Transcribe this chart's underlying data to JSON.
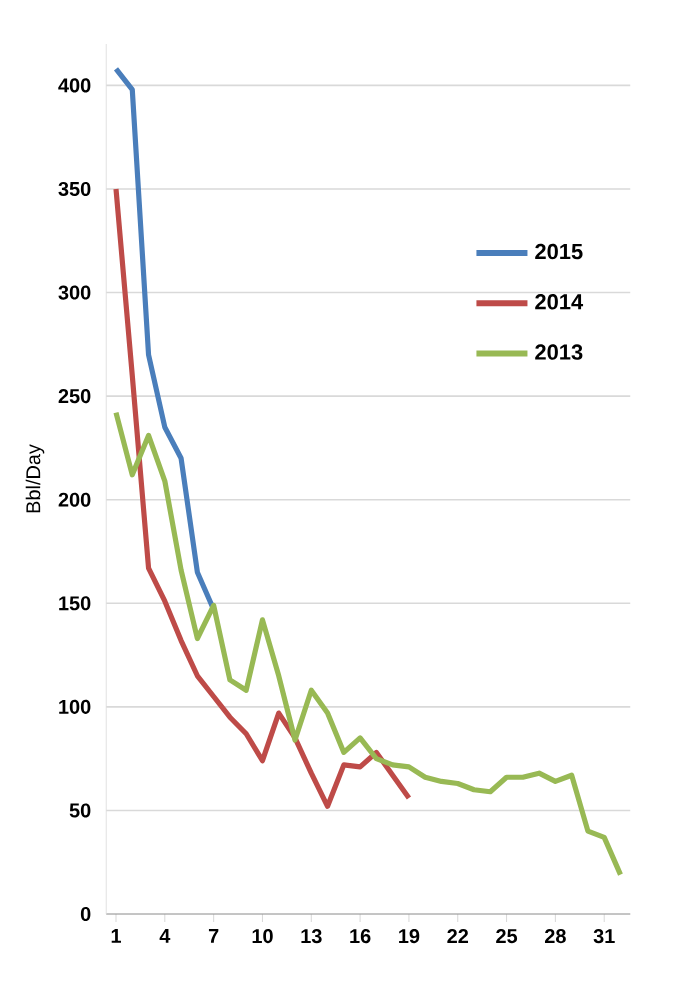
{
  "chart_data": {
    "type": "line",
    "ylabel": "Bbl/Day",
    "categories": [
      "1",
      null,
      null,
      "4",
      null,
      null,
      "7",
      null,
      null,
      "10",
      null,
      null,
      "13",
      null,
      null,
      "16",
      null,
      null,
      "19",
      null,
      null,
      "22",
      null,
      null,
      "25",
      null,
      null,
      "28",
      null,
      null,
      "31",
      null
    ],
    "series": [
      {
        "name": "2015",
        "color": "#4a7ebb",
        "values": [
          408,
          398,
          270,
          235,
          220,
          165,
          147,
          null,
          null,
          null,
          null,
          null,
          null,
          null,
          null,
          null,
          null,
          null,
          null,
          null,
          null,
          null,
          null,
          null,
          null,
          null,
          null,
          null,
          null,
          null,
          null,
          null
        ]
      },
      {
        "name": "2014",
        "color": "#be4b48",
        "values": [
          350,
          260,
          167,
          151,
          132,
          115,
          105,
          95,
          87,
          74,
          97,
          85,
          68,
          52,
          72,
          71,
          78,
          67,
          56,
          null,
          null,
          null,
          null,
          null,
          null,
          null,
          null,
          null,
          null,
          null,
          null,
          null
        ]
      },
      {
        "name": "2013",
        "color": "#98b954",
        "values": [
          242,
          212,
          231,
          209,
          166,
          133,
          149,
          113,
          108,
          142,
          115,
          84,
          108,
          97,
          78,
          85,
          75,
          72,
          71,
          66,
          64,
          63,
          60,
          59,
          66,
          66,
          68,
          64,
          67,
          40,
          37,
          19
        ]
      }
    ],
    "ylim": [
      0,
      420
    ],
    "yticks": [
      0,
      50,
      100,
      150,
      200,
      250,
      300,
      350,
      400
    ],
    "grid": "y",
    "legend": "top right",
    "marker": "none",
    "line_style": "solid"
  }
}
